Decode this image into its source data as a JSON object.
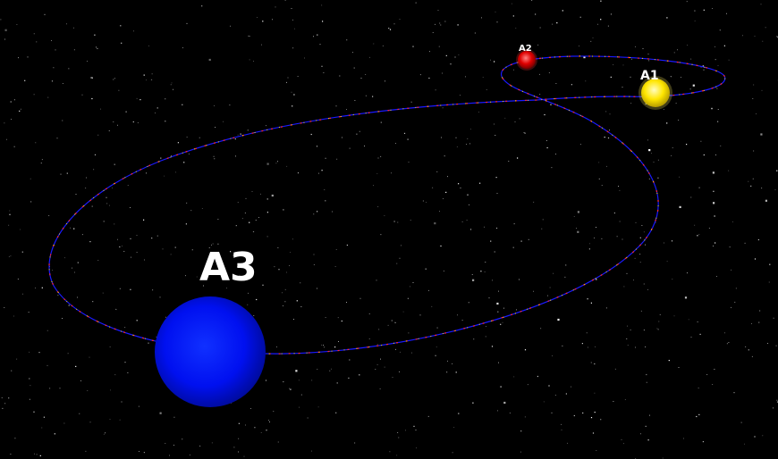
{
  "scene": {
    "background_color": "#000000",
    "bodies": [
      {
        "id": "a1",
        "label": "A1",
        "color": "#ffe600",
        "glow": "#fff48a"
      },
      {
        "id": "a2",
        "label": "A2",
        "color": "#e00000",
        "glow": "#ff6a6a"
      },
      {
        "id": "a3",
        "label": "A3",
        "color": "#0010ff",
        "glow": "#5a6bff"
      }
    ],
    "orbit_colors": [
      "#2020ff",
      "#ff2a2a",
      "#ffe000"
    ],
    "star_color": "#ffffff"
  }
}
